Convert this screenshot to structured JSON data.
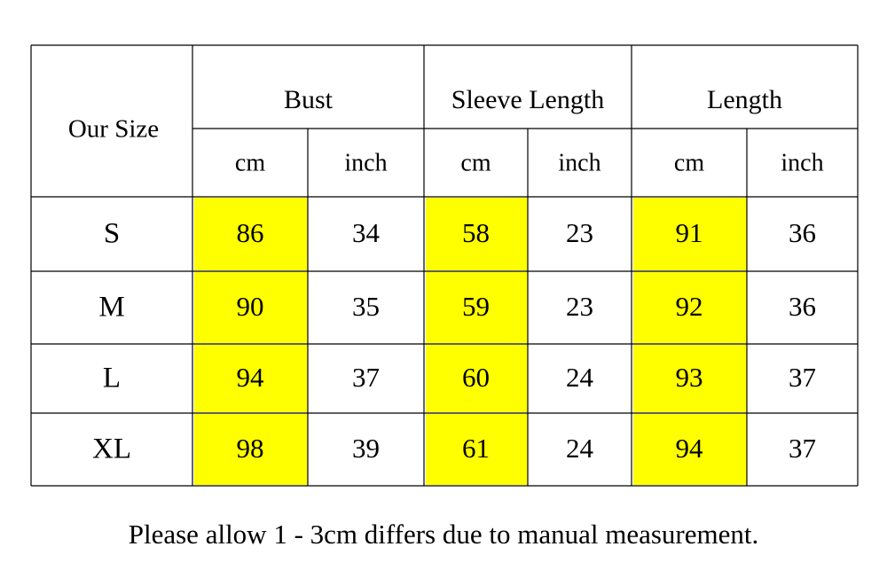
{
  "table": {
    "corner": "Our Size",
    "groups": [
      "Bust",
      "Sleeve Length",
      "Length"
    ],
    "units": [
      "cm",
      "inch",
      "cm",
      "inch",
      "cm",
      "inch"
    ],
    "rows": [
      [
        "S",
        86,
        34,
        58,
        23,
        91,
        36
      ],
      [
        "M",
        90,
        35,
        59,
        23,
        92,
        36
      ],
      [
        "L",
        94,
        37,
        60,
        24,
        93,
        37
      ],
      [
        "XL",
        98,
        39,
        61,
        24,
        94,
        37
      ]
    ]
  },
  "note": "Please allow 1 - 3cm differs due to manual measurement."
}
